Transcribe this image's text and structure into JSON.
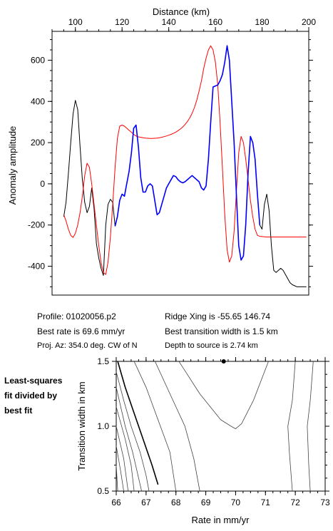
{
  "chart_data": [
    {
      "type": "line",
      "title": "",
      "xlabel": "Distance (km)",
      "ylabel": "Anomaly amplitude",
      "xlim": [
        90,
        200
      ],
      "ylim": [
        -540,
        740
      ],
      "x_ticks": [
        100,
        120,
        140,
        160,
        180,
        200
      ],
      "y_ticks": [
        -400,
        -200,
        0,
        200,
        400,
        600
      ],
      "x_axis_position": "top",
      "grid": false,
      "series": [
        {
          "color": "#000000",
          "x": [
            95,
            96,
            97,
            98,
            99,
            100,
            101,
            102,
            103,
            104,
            105,
            106,
            107,
            108,
            109,
            110,
            111,
            112,
            113,
            114,
            115,
            116,
            117,
            118,
            119,
            120,
            121,
            122,
            123,
            124,
            125,
            126,
            127,
            128,
            129,
            130,
            131,
            132,
            133,
            134,
            135,
            136,
            137,
            138,
            139,
            140,
            141,
            142,
            143,
            144,
            145,
            146,
            147,
            148,
            149,
            150,
            151,
            152,
            153,
            154,
            155,
            156,
            157,
            158,
            159,
            160,
            161,
            162,
            163,
            164,
            165,
            166,
            167,
            168,
            169,
            170,
            171,
            172,
            173,
            174,
            175,
            176,
            177,
            178,
            179,
            180,
            181,
            182,
            183,
            184,
            185,
            186,
            187,
            188,
            189,
            190,
            191,
            192,
            193,
            194,
            195,
            196,
            197,
            198,
            199
          ],
          "y": [
            -160,
            -90,
            50,
            200,
            340,
            405,
            360,
            180,
            20,
            -90,
            -140,
            -110,
            -20,
            -120,
            -290,
            -360,
            -410,
            -445,
            -200,
            -100,
            -75,
            -90,
            -205,
            -160,
            -80,
            -50,
            -60,
            0,
            60,
            150,
            270,
            285,
            180,
            30,
            -40,
            -40,
            -10,
            0,
            -10,
            -80,
            -150,
            -140,
            -100,
            -60,
            -20,
            0,
            20,
            40,
            35,
            20,
            10,
            5,
            10,
            20,
            30,
            40,
            30,
            20,
            10,
            -20,
            -30,
            -10,
            120,
            300,
            470,
            475,
            480,
            500,
            530,
            590,
            670,
            600,
            400,
            200,
            -50,
            -300,
            -370,
            -350,
            -200,
            50,
            230,
            200,
            120,
            -50,
            -200,
            -220,
            -100,
            -50,
            -130,
            -300,
            -420,
            -430,
            -420,
            -410,
            -420,
            -440,
            -460,
            -480,
            -490,
            -495,
            -500,
            -500,
            -500,
            -500,
            -500
          ]
        },
        {
          "color": "#ff0000",
          "x": [
            95,
            96,
            97,
            98,
            99,
            100,
            101,
            102,
            103,
            104,
            105,
            106,
            107,
            108,
            109,
            110,
            111,
            112,
            113,
            114,
            115,
            116,
            117,
            118,
            119,
            120,
            121,
            122,
            123,
            124,
            125,
            126,
            127,
            128,
            129,
            130,
            131,
            132,
            133,
            134,
            135,
            136,
            137,
            138,
            139,
            140,
            141,
            142,
            143,
            144,
            145,
            146,
            147,
            148,
            149,
            150,
            151,
            152,
            153,
            154,
            155,
            156,
            157,
            158,
            159,
            160,
            161,
            162,
            163,
            164,
            165,
            166,
            167,
            168,
            169,
            170,
            171,
            172,
            173,
            174,
            175,
            176,
            177,
            178,
            179,
            180,
            181,
            182,
            183,
            184,
            185,
            186,
            187,
            188,
            189,
            190,
            191,
            192,
            193,
            194,
            195,
            196,
            197,
            198,
            199
          ],
          "y": [
            -150,
            -180,
            -220,
            -250,
            -260,
            -240,
            -200,
            -140,
            -60,
            40,
            100,
            80,
            0,
            -100,
            -200,
            -300,
            -380,
            -430,
            -440,
            -380,
            -260,
            -100,
            80,
            220,
            280,
            285,
            280,
            270,
            260,
            250,
            240,
            232,
            228,
            226,
            224,
            222,
            221,
            220,
            220,
            221,
            222,
            224,
            226,
            229,
            232,
            236,
            240,
            245,
            251,
            258,
            266,
            276,
            288,
            302,
            320,
            342,
            370,
            405,
            450,
            500,
            560,
            610,
            650,
            670,
            650,
            590,
            480,
            300,
            80,
            -150,
            -320,
            -380,
            -350,
            -230,
            -40,
            150,
            230,
            200,
            120,
            20,
            -80,
            -160,
            -220,
            -250,
            -255,
            -256,
            -257,
            -258,
            -258,
            -258,
            -258,
            -258,
            -258,
            -258,
            -258,
            -258,
            -258,
            -258,
            -258,
            -258,
            -258,
            -258,
            -258,
            -258,
            -258
          ]
        },
        {
          "color": "#0000ff",
          "x": [
            117,
            118,
            119,
            120,
            121,
            122,
            123,
            124,
            125,
            126,
            127,
            128,
            129,
            130,
            131,
            132,
            133,
            134,
            135,
            136,
            137,
            138,
            139,
            140,
            141,
            142,
            143,
            144,
            145,
            146,
            147,
            148,
            149,
            150,
            151,
            152,
            153,
            154,
            155,
            156,
            157,
            158,
            159,
            160,
            161,
            162,
            163,
            164,
            165,
            166,
            167,
            168,
            169,
            170,
            171,
            172,
            173,
            174,
            175,
            176,
            177,
            178,
            179
          ],
          "y": [
            -205,
            -160,
            -80,
            -50,
            -60,
            0,
            60,
            150,
            270,
            285,
            180,
            30,
            -40,
            -40,
            -10,
            0,
            -10,
            -80,
            -150,
            -140,
            -100,
            -60,
            -20,
            0,
            20,
            40,
            35,
            20,
            10,
            5,
            10,
            20,
            30,
            40,
            30,
            20,
            10,
            -20,
            -30,
            -10,
            120,
            300,
            470,
            475,
            480,
            500,
            530,
            590,
            670,
            600,
            400,
            200,
            -50,
            -300,
            -370,
            -350,
            -200,
            50,
            230,
            200,
            120,
            -50,
            -200
          ]
        }
      ]
    },
    {
      "type": "contour",
      "title": "",
      "xlabel": "Rate in mm/yr",
      "ylabel": "Transition width in km",
      "xlim": [
        66,
        73
      ],
      "ylim": [
        0.5,
        1.5
      ],
      "x_ticks": [
        66,
        67,
        68,
        69,
        70,
        71,
        72,
        73
      ],
      "y_ticks": [
        "0.5",
        "1.0",
        "1.5"
      ],
      "best_fit_marker": {
        "x": 69.6,
        "y": 1.5
      },
      "grid": false,
      "contours": [
        {
          "level": "bold",
          "points": [
            [
              66.05,
              1.5
            ],
            [
              66.3,
              1.3
            ],
            [
              66.6,
              1.1
            ],
            [
              66.9,
              0.9
            ],
            [
              67.2,
              0.7
            ],
            [
              67.4,
              0.55
            ]
          ]
        },
        {
          "level": "thin",
          "points": [
            [
              66.0,
              1.42
            ],
            [
              66.25,
              1.2
            ],
            [
              66.5,
              1.0
            ],
            [
              66.8,
              0.8
            ],
            [
              67.0,
              0.62
            ],
            [
              67.1,
              0.5
            ]
          ]
        },
        {
          "level": "thin",
          "points": [
            [
              66.0,
              1.3
            ],
            [
              66.3,
              1.0
            ],
            [
              66.55,
              0.8
            ],
            [
              66.75,
              0.6
            ],
            [
              66.85,
              0.5
            ]
          ]
        },
        {
          "level": "thin",
          "points": [
            [
              66.0,
              1.15
            ],
            [
              66.3,
              0.9
            ],
            [
              66.5,
              0.7
            ],
            [
              66.6,
              0.5
            ]
          ]
        },
        {
          "level": "thin",
          "points": [
            [
              66.0,
              1.0
            ],
            [
              66.25,
              0.75
            ],
            [
              66.4,
              0.5
            ]
          ]
        },
        {
          "level": "thin",
          "points": [
            [
              66.0,
              0.85
            ],
            [
              66.15,
              0.65
            ],
            [
              66.25,
              0.5
            ]
          ]
        },
        {
          "level": "thin",
          "points": [
            [
              66.0,
              0.7
            ],
            [
              66.05,
              0.5
            ]
          ]
        },
        {
          "level": "thin",
          "points": [
            [
              66.6,
              1.5
            ],
            [
              67.0,
              1.3
            ],
            [
              67.4,
              1.05
            ],
            [
              67.8,
              0.8
            ],
            [
              68.0,
              0.5
            ]
          ]
        },
        {
          "level": "thin",
          "points": [
            [
              67.3,
              1.5
            ],
            [
              67.8,
              1.25
            ],
            [
              68.3,
              1.0
            ],
            [
              68.6,
              0.75
            ],
            [
              68.8,
              0.5
            ]
          ]
        },
        {
          "level": "thin",
          "points": [
            [
              68.1,
              1.5
            ],
            [
              68.8,
              1.25
            ],
            [
              69.5,
              1.05
            ],
            [
              69.85,
              1.0
            ],
            [
              70.0,
              0.98
            ],
            [
              70.2,
              1.02
            ],
            [
              70.6,
              1.2
            ],
            [
              71.1,
              1.5
            ]
          ]
        },
        {
          "level": "thin",
          "points": [
            [
              72.0,
              1.5
            ],
            [
              71.9,
              1.2
            ],
            [
              71.75,
              1.0
            ],
            [
              71.8,
              0.8
            ],
            [
              71.9,
              0.5
            ]
          ]
        },
        {
          "level": "thin",
          "points": [
            [
              72.6,
              1.5
            ],
            [
              72.5,
              1.2
            ],
            [
              72.4,
              1.0
            ],
            [
              72.45,
              0.7
            ],
            [
              72.5,
              0.5
            ]
          ]
        }
      ]
    }
  ],
  "info": {
    "profile": "Profile: 01020056.p2",
    "best_rate": "Best rate is 69.6 mm/yr",
    "proj_az": "Proj. Az: 354.0 deg. CW of N",
    "ridge": "Ridge Xing is -55.65 146.74",
    "transition": "Best transition width is 1.5 km",
    "depth": "Depth to source is   2.74 km"
  },
  "side_note": {
    "line1": "Least-squares",
    "line2": "fit divided by",
    "line3": "best fit"
  }
}
